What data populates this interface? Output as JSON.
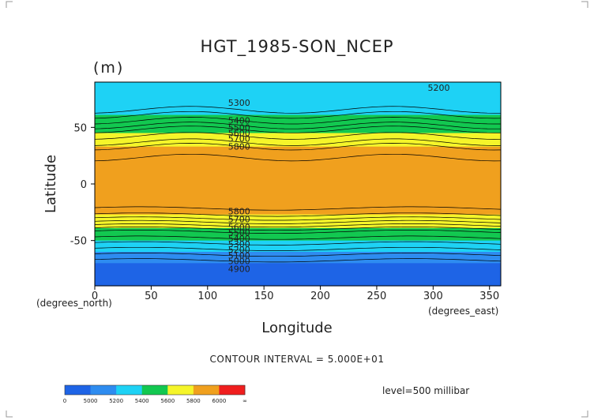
{
  "chart_data": {
    "type": "heatmap",
    "title": "HGT_1985-SON_NCEP",
    "units": "(m)",
    "xlabel": "Longitude",
    "ylabel": "Latitude",
    "x_unit_label": "(degrees_east)",
    "y_unit_label": "(degrees_north)",
    "xlim": [
      0,
      360
    ],
    "ylim": [
      -90,
      90
    ],
    "x_ticks": [
      0,
      50,
      100,
      150,
      200,
      250,
      300,
      350
    ],
    "y_ticks": [
      50,
      0,
      -50
    ],
    "contour_interval_text": "CONTOUR INTERVAL = 5.000E+01",
    "level_text": "level=500 millibar",
    "contour_labels": [
      {
        "text": "5200",
        "lon": 305,
        "lat": 85
      },
      {
        "text": "5300",
        "lon": 128,
        "lat": 72
      },
      {
        "text": "5400",
        "lon": 128,
        "lat": 56
      },
      {
        "text": "5500",
        "lon": 128,
        "lat": 50
      },
      {
        "text": "5600",
        "lon": 128,
        "lat": 45
      },
      {
        "text": "5700",
        "lon": 128,
        "lat": 40
      },
      {
        "text": "5800",
        "lon": 128,
        "lat": 33
      },
      {
        "text": "5800",
        "lon": 128,
        "lat": -24
      },
      {
        "text": "5700",
        "lon": 128,
        "lat": -31
      },
      {
        "text": "5600",
        "lon": 128,
        "lat": -38
      },
      {
        "text": "5500",
        "lon": 128,
        "lat": -43
      },
      {
        "text": "5400",
        "lon": 128,
        "lat": -48
      },
      {
        "text": "5300",
        "lon": 128,
        "lat": -53
      },
      {
        "text": "5200",
        "lon": 128,
        "lat": -58
      },
      {
        "text": "5100",
        "lon": 128,
        "lat": -63
      },
      {
        "text": "5000",
        "lon": 128,
        "lat": -68
      },
      {
        "text": "4900",
        "lon": 128,
        "lat": -75
      }
    ],
    "bands": [
      {
        "value_min": 0,
        "value_max": 5000,
        "color": "#1e64e6"
      },
      {
        "value_min": 5000,
        "value_max": 5200,
        "color": "#2e8cf0"
      },
      {
        "value_min": 5200,
        "value_max": 5400,
        "color": "#1ed2f5"
      },
      {
        "value_min": 5400,
        "value_max": 5600,
        "color": "#12c850"
      },
      {
        "value_min": 5600,
        "value_max": 5800,
        "color": "#f5f52a"
      },
      {
        "value_min": 5800,
        "value_max": 6000,
        "color": "#f0a01e"
      },
      {
        "value_min": 6000,
        "value_max": null,
        "color": "#f01e1e"
      }
    ],
    "colorbar": {
      "labels": [
        "0",
        "5000",
        "5200",
        "5400",
        "5600",
        "5800",
        "6000",
        "∞"
      ],
      "segment_colors": [
        "#1e64e6",
        "#1e64e6",
        "#2e8cf0",
        "#2e8cf0",
        "#1ed2f5",
        "#1ed2f5",
        "#12c850",
        "#12c850",
        "#f5f52a",
        "#f5f52a",
        "#f0a01e",
        "#f0a01e",
        "#f01e1e",
        "#f01e1e"
      ]
    },
    "zonal_profile": {
      "lat": [
        90,
        80,
        70,
        62,
        55,
        50,
        45,
        40,
        35,
        30,
        20,
        0,
        -20,
        -25,
        -30,
        -35,
        -40,
        -45,
        -50,
        -55,
        -60,
        -65,
        -70,
        -80,
        -90
      ],
      "value": [
        5200,
        5250,
        5300,
        5390,
        5460,
        5520,
        5600,
        5700,
        5780,
        5830,
        5860,
        5860,
        5860,
        5830,
        5760,
        5680,
        5590,
        5500,
        5400,
        5300,
        5200,
        5100,
        5000,
        4950,
        4950
      ]
    },
    "grid": false
  }
}
